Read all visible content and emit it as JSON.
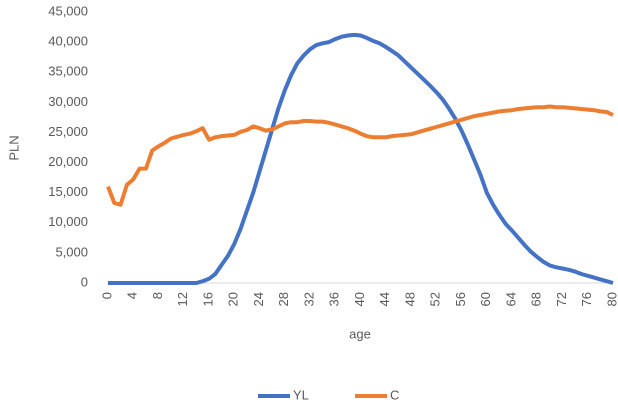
{
  "chart_data": {
    "type": "line",
    "x_label": "age",
    "y_label": "PLN",
    "x": [
      0,
      1,
      2,
      3,
      4,
      5,
      6,
      7,
      8,
      9,
      10,
      11,
      12,
      13,
      14,
      15,
      16,
      17,
      18,
      19,
      20,
      21,
      22,
      23,
      24,
      25,
      26,
      27,
      28,
      29,
      30,
      31,
      32,
      33,
      34,
      35,
      36,
      37,
      38,
      39,
      40,
      41,
      42,
      43,
      44,
      45,
      46,
      47,
      48,
      49,
      50,
      51,
      52,
      53,
      54,
      55,
      56,
      57,
      58,
      59,
      60,
      61,
      62,
      63,
      64,
      65,
      66,
      67,
      68,
      69,
      70,
      71,
      72,
      73,
      74,
      75,
      76,
      77,
      78,
      79,
      80
    ],
    "series": [
      {
        "name": "YL",
        "color": "#4472c4",
        "values": [
          0,
          0,
          0,
          0,
          0,
          0,
          0,
          0,
          0,
          0,
          0,
          0,
          0,
          0,
          0,
          300,
          700,
          1500,
          3000,
          4500,
          6500,
          9000,
          12000,
          15000,
          18500,
          22000,
          25500,
          29000,
          32000,
          34500,
          36500,
          37800,
          38800,
          39500,
          39800,
          40000,
          40500,
          40900,
          41100,
          41200,
          41100,
          40700,
          40200,
          39800,
          39200,
          38500,
          37800,
          36800,
          35800,
          34800,
          33800,
          32800,
          31700,
          30500,
          29000,
          27300,
          25300,
          23000,
          20500,
          18000,
          15000,
          13000,
          11300,
          9800,
          8700,
          7500,
          6300,
          5200,
          4300,
          3500,
          2900,
          2600,
          2400,
          2200,
          1900,
          1500,
          1200,
          900,
          600,
          300,
          0
        ]
      },
      {
        "name": "C",
        "color": "#ed7d31",
        "values": [
          16000,
          13300,
          13000,
          16300,
          17200,
          19000,
          19000,
          22000,
          22700,
          23300,
          24000,
          24300,
          24600,
          24800,
          25200,
          25700,
          23800,
          24200,
          24400,
          24500,
          24600,
          25100,
          25400,
          26000,
          25700,
          25300,
          25500,
          26000,
          26500,
          26700,
          26700,
          26900,
          26900,
          26800,
          26800,
          26600,
          26300,
          26000,
          25700,
          25300,
          24800,
          24400,
          24200,
          24200,
          24200,
          24400,
          24500,
          24600,
          24700,
          25000,
          25300,
          25600,
          25900,
          26200,
          26500,
          26800,
          27100,
          27400,
          27700,
          27900,
          28100,
          28300,
          28500,
          28600,
          28700,
          28900,
          29000,
          29100,
          29200,
          29200,
          29300,
          29200,
          29200,
          29100,
          29000,
          28900,
          28800,
          28700,
          28500,
          28400,
          27900
        ]
      }
    ],
    "xlim": [
      0,
      80
    ],
    "xticks": [
      0,
      4,
      8,
      12,
      16,
      20,
      24,
      28,
      32,
      36,
      40,
      44,
      48,
      52,
      56,
      60,
      64,
      68,
      72,
      76,
      80
    ],
    "ylim": [
      0,
      45000
    ],
    "yticks": [
      0,
      {
        "value": 5000,
        "label": "5,000"
      },
      {
        "value": 10000,
        "label": "10,000"
      },
      {
        "value": 15000,
        "label": "15,000"
      },
      {
        "value": 20000,
        "label": "20,000"
      },
      {
        "value": 25000,
        "label": "25,000"
      },
      {
        "value": 30000,
        "label": "30,000"
      },
      {
        "value": 35000,
        "label": "35,000"
      },
      {
        "value": 40000,
        "label": "40,000"
      },
      {
        "value": 45000,
        "label": "45,000"
      }
    ],
    "grid": false,
    "legend": "bottom"
  }
}
